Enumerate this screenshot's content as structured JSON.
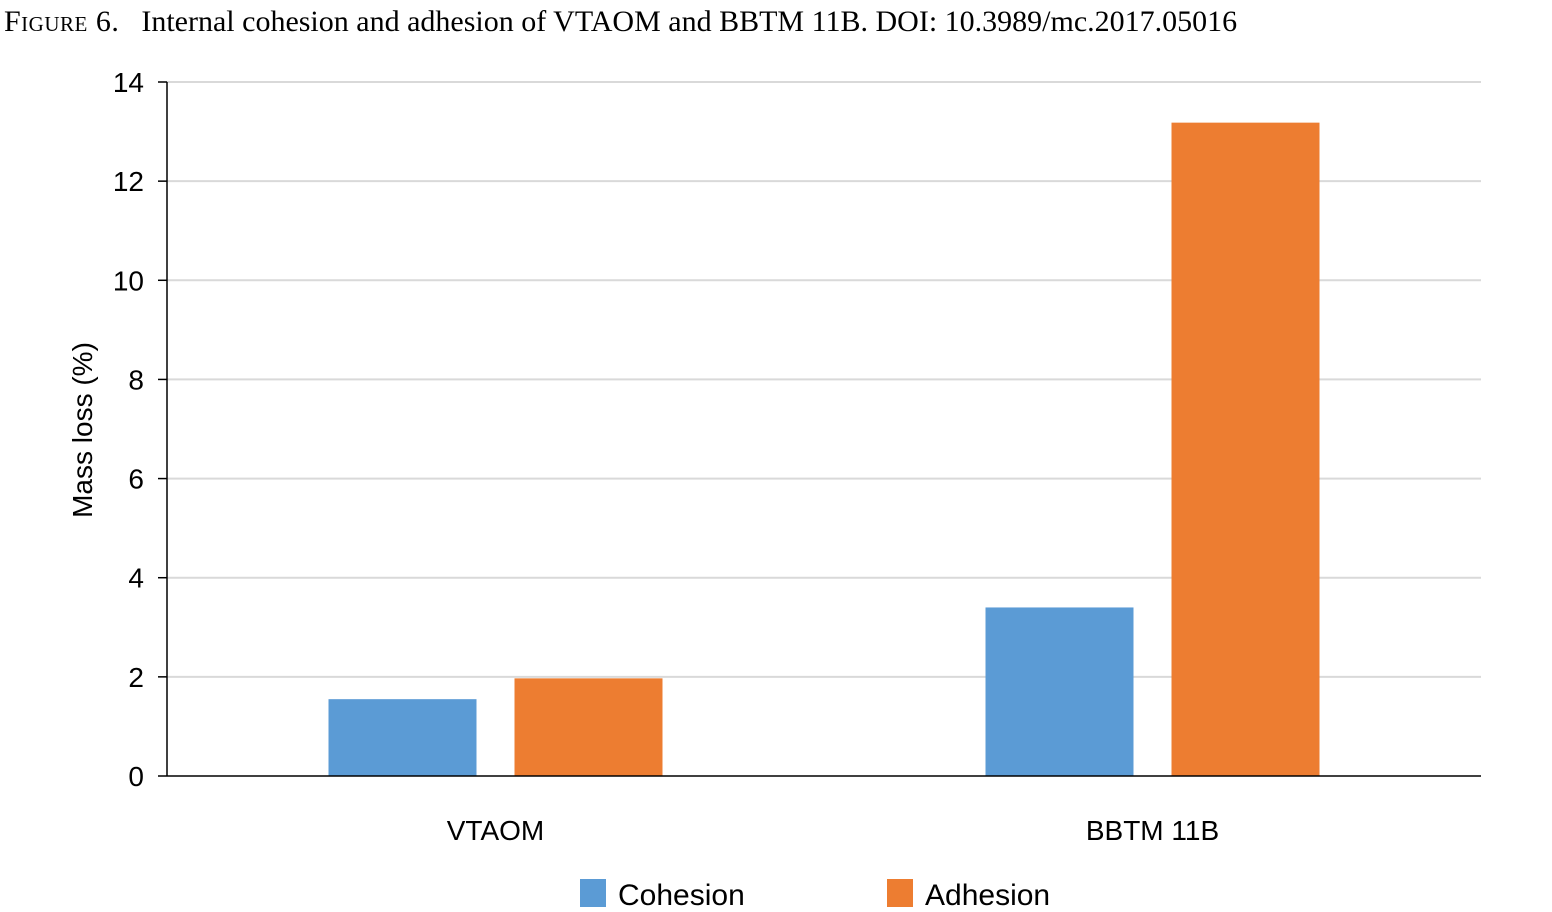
{
  "caption": {
    "label": "Figure 6.",
    "text": "Internal cohesion and adhesion of VTAOM and BBTM 11B. DOI: 10.3989/mc.2017.05016"
  },
  "chart_data": {
    "type": "bar",
    "categories": [
      "VTAOM",
      "BBTM 11B"
    ],
    "series": [
      {
        "name": "Cohesion",
        "values": [
          1.55,
          3.4
        ],
        "color": "#5b9bd5"
      },
      {
        "name": "Adhesion",
        "values": [
          1.97,
          13.18
        ],
        "color": "#ed7d31"
      }
    ],
    "xlabel": "",
    "ylabel": "Mass loss (%)",
    "ylim": [
      0,
      14
    ],
    "yticks": [
      0,
      2,
      4,
      6,
      8,
      10,
      12,
      14
    ],
    "grid": true,
    "legend_position": "bottom"
  }
}
